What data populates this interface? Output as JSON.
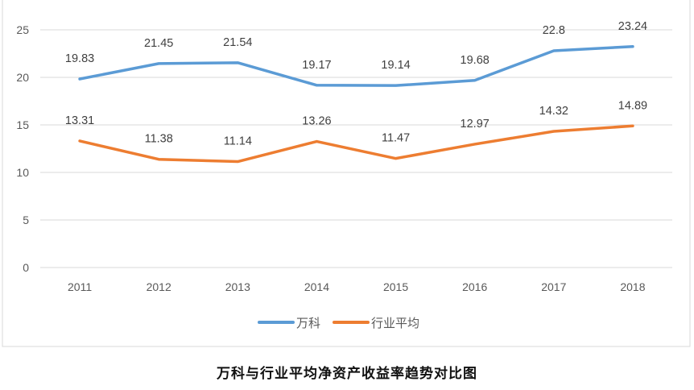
{
  "chart_data": {
    "type": "line",
    "title": "万科与行业平均净资产收益率趋势对比图",
    "xlabel": "",
    "ylabel": "",
    "categories": [
      "2011",
      "2012",
      "2013",
      "2014",
      "2015",
      "2016",
      "2017",
      "2018"
    ],
    "ylim": [
      0,
      25
    ],
    "yticks": [
      0,
      5,
      10,
      15,
      20,
      25
    ],
    "grid": true,
    "legend_position": "bottom",
    "series": [
      {
        "name": "万科",
        "color": "#5B9BD5",
        "values": [
          19.83,
          21.45,
          21.54,
          19.17,
          19.14,
          19.68,
          22.8,
          23.24
        ],
        "labels": [
          "19.83",
          "21.45",
          "21.54",
          "19.17",
          "19.14",
          "19.68",
          "22.8",
          "23.24"
        ]
      },
      {
        "name": "行业平均",
        "color": "#ED7D31",
        "values": [
          13.31,
          11.38,
          11.14,
          13.26,
          11.47,
          12.97,
          14.32,
          14.89
        ],
        "labels": [
          "13.31",
          "11.38",
          "11.14",
          "13.26",
          "11.47",
          "12.97",
          "14.32",
          "14.89"
        ]
      }
    ]
  }
}
